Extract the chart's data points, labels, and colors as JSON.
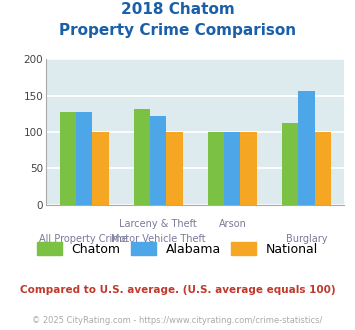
{
  "title_line1": "2018 Chatom",
  "title_line2": "Property Crime Comparison",
  "x_top_labels": [
    "",
    "Larceny & Theft",
    "Arson",
    ""
  ],
  "x_bot_labels": [
    "All Property Crime",
    "Motor Vehicle Theft",
    "",
    "Burglary"
  ],
  "chatom": [
    128,
    131,
    100,
    113
  ],
  "alabama": [
    127,
    122,
    100,
    157
  ],
  "national": [
    100,
    100,
    100,
    100
  ],
  "colors": {
    "chatom": "#7bc143",
    "alabama": "#4da6e8",
    "national": "#f5a623"
  },
  "ylim": [
    0,
    200
  ],
  "yticks": [
    0,
    50,
    100,
    150,
    200
  ],
  "background_color": "#ddeaee",
  "grid_color": "#ffffff",
  "title_color": "#1a5fa8",
  "footer_text": "Compared to U.S. average. (U.S. average equals 100)",
  "copyright_text": "© 2025 CityRating.com - https://www.cityrating.com/crime-statistics/",
  "footer_color": "#c0392b",
  "copyright_color": "#aaaaaa"
}
